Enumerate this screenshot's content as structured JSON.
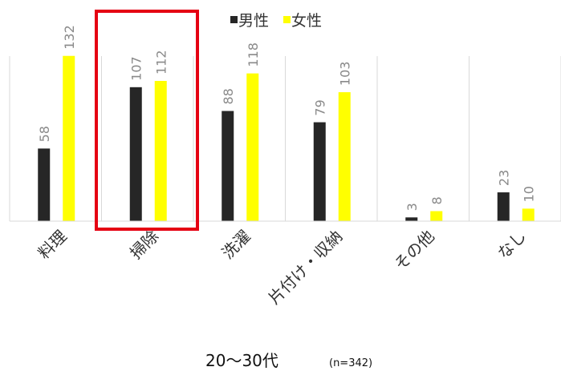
{
  "chart_data": {
    "type": "bar",
    "categories": [
      "料理",
      "掃除",
      "洗濯",
      "片付け・収納",
      "その他",
      "なし"
    ],
    "series": [
      {
        "name": "男性",
        "values": [
          58,
          107,
          88,
          79,
          3,
          23
        ],
        "color": "#262626"
      },
      {
        "name": "女性",
        "values": [
          132,
          112,
          118,
          103,
          8,
          10
        ],
        "color": "#ffff00"
      }
    ],
    "ylim": [
      0,
      160
    ],
    "grid": true,
    "legend_position": "top",
    "highlight": {
      "category": "掃除",
      "color": "#e50012"
    },
    "footer": {
      "main": "20〜30代",
      "sub": "(n=342)"
    }
  }
}
